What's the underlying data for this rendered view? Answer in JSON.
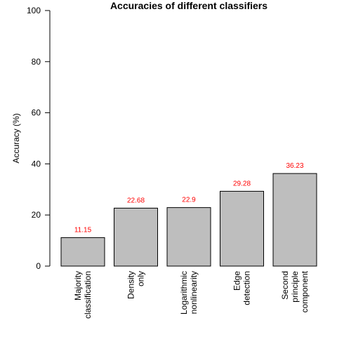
{
  "chart_data": {
    "type": "bar",
    "title": "Accuracies of different classifiers",
    "xlabel": "",
    "ylabel": "Accuracy (%)",
    "ylim": [
      0,
      100
    ],
    "yticks": [
      0,
      20,
      40,
      60,
      80,
      100
    ],
    "categories": [
      [
        "Majority",
        "classification"
      ],
      [
        "Density",
        "only"
      ],
      [
        "Logarithmic",
        "nonlinearity"
      ],
      [
        "Edge",
        "detection"
      ],
      [
        "Second",
        "principle",
        "component"
      ]
    ],
    "values": [
      11.15,
      22.68,
      22.9,
      29.28,
      36.23
    ],
    "data_labels": [
      "11.15",
      "22.68",
      "22.9",
      "29.28",
      "36.23"
    ],
    "bar_color": "#bebebe",
    "label_color": "#ff0000",
    "grid": false,
    "legend": "none"
  }
}
